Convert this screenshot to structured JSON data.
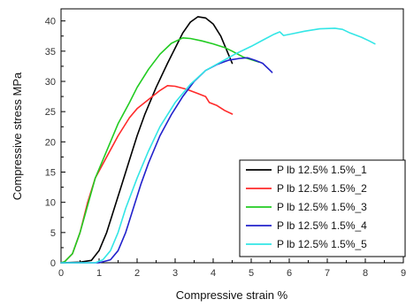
{
  "chart_data": {
    "type": "line",
    "title": "",
    "xlabel": "Compressive strain %",
    "ylabel": "Compressive stress MPa",
    "xlim": [
      0,
      9
    ],
    "ylim": [
      0,
      42
    ],
    "xticks": [
      0,
      1,
      2,
      3,
      4,
      5,
      6,
      7,
      8,
      9
    ],
    "yticks": [
      0,
      5,
      10,
      15,
      20,
      25,
      30,
      35,
      40
    ],
    "grid": false,
    "legend_position": "bottom-right",
    "series": [
      {
        "name": "P lb 12.5% 1.5%_1",
        "color": "#000000",
        "points": [
          [
            0,
            0
          ],
          [
            0.5,
            0.1
          ],
          [
            0.8,
            0.4
          ],
          [
            1.0,
            2
          ],
          [
            1.2,
            5
          ],
          [
            1.4,
            9
          ],
          [
            1.6,
            13
          ],
          [
            1.8,
            17
          ],
          [
            2.0,
            21
          ],
          [
            2.2,
            24.5
          ],
          [
            2.5,
            29
          ],
          [
            2.8,
            33
          ],
          [
            3.0,
            35.5
          ],
          [
            3.2,
            38
          ],
          [
            3.4,
            39.8
          ],
          [
            3.6,
            40.7
          ],
          [
            3.8,
            40.5
          ],
          [
            4.0,
            39.5
          ],
          [
            4.2,
            37.5
          ],
          [
            4.4,
            34.5
          ],
          [
            4.5,
            33
          ]
        ]
      },
      {
        "name": "P lb 12.5% 1.5%_2",
        "color": "#ff2a2a",
        "points": [
          [
            0,
            0
          ],
          [
            0.1,
            0.2
          ],
          [
            0.3,
            1.5
          ],
          [
            0.5,
            5
          ],
          [
            0.7,
            10
          ],
          [
            0.9,
            14
          ],
          [
            1.2,
            17.5
          ],
          [
            1.5,
            21
          ],
          [
            1.8,
            24
          ],
          [
            2.0,
            25.5
          ],
          [
            2.3,
            27
          ],
          [
            2.6,
            28.5
          ],
          [
            2.8,
            29.3
          ],
          [
            3.0,
            29.2
          ],
          [
            3.3,
            28.7
          ],
          [
            3.6,
            28
          ],
          [
            3.8,
            27.5
          ],
          [
            3.9,
            26.5
          ],
          [
            4.1,
            26
          ],
          [
            4.3,
            25.2
          ],
          [
            4.5,
            24.6
          ]
        ]
      },
      {
        "name": "P lb 12.5% 1.5%_3",
        "color": "#22cc22",
        "points": [
          [
            0,
            0
          ],
          [
            0.1,
            0.2
          ],
          [
            0.3,
            1.5
          ],
          [
            0.5,
            5
          ],
          [
            0.7,
            9.5
          ],
          [
            0.9,
            14
          ],
          [
            1.2,
            18.5
          ],
          [
            1.5,
            23
          ],
          [
            1.8,
            26.5
          ],
          [
            2.0,
            29
          ],
          [
            2.3,
            32
          ],
          [
            2.6,
            34.5
          ],
          [
            2.9,
            36.3
          ],
          [
            3.2,
            37.2
          ],
          [
            3.4,
            37.1
          ],
          [
            3.7,
            36.7
          ],
          [
            4.0,
            36.2
          ],
          [
            4.3,
            35.6
          ],
          [
            4.5,
            35
          ],
          [
            4.8,
            34
          ],
          [
            5.2,
            33.2
          ]
        ]
      },
      {
        "name": "P lb 12.5% 1.5%_4",
        "color": "#2222cc",
        "points": [
          [
            0,
            0
          ],
          [
            1.0,
            0
          ],
          [
            1.3,
            0.5
          ],
          [
            1.5,
            2
          ],
          [
            1.7,
            5
          ],
          [
            1.9,
            9
          ],
          [
            2.1,
            13
          ],
          [
            2.3,
            16.5
          ],
          [
            2.6,
            21
          ],
          [
            2.9,
            24.5
          ],
          [
            3.2,
            27.5
          ],
          [
            3.5,
            30
          ],
          [
            3.8,
            31.8
          ],
          [
            4.1,
            32.8
          ],
          [
            4.4,
            33.5
          ],
          [
            4.7,
            33.8
          ],
          [
            4.9,
            33.9
          ],
          [
            5.1,
            33.5
          ],
          [
            5.3,
            33
          ],
          [
            5.5,
            31.8
          ],
          [
            5.55,
            31.5
          ]
        ]
      },
      {
        "name": "P lb 12.5% 1.5%_5",
        "color": "#33e6e6",
        "points": [
          [
            0,
            0
          ],
          [
            0.9,
            0
          ],
          [
            1.1,
            0.5
          ],
          [
            1.3,
            2
          ],
          [
            1.5,
            5
          ],
          [
            1.7,
            9
          ],
          [
            2.0,
            14
          ],
          [
            2.3,
            18.5
          ],
          [
            2.6,
            22.5
          ],
          [
            3.0,
            26.5
          ],
          [
            3.4,
            29.5
          ],
          [
            3.8,
            31.8
          ],
          [
            4.2,
            33.2
          ],
          [
            4.6,
            34.6
          ],
          [
            5.0,
            35.8
          ],
          [
            5.3,
            36.8
          ],
          [
            5.6,
            37.8
          ],
          [
            5.75,
            38.2
          ],
          [
            5.85,
            37.6
          ],
          [
            6.1,
            37.9
          ],
          [
            6.4,
            38.3
          ],
          [
            6.8,
            38.7
          ],
          [
            7.2,
            38.8
          ],
          [
            7.4,
            38.6
          ],
          [
            7.6,
            38.0
          ],
          [
            7.9,
            37.3
          ],
          [
            8.1,
            36.7
          ],
          [
            8.25,
            36.2
          ]
        ]
      }
    ]
  }
}
